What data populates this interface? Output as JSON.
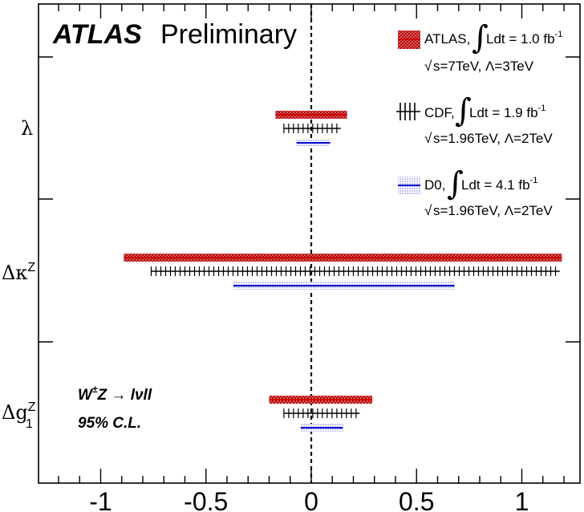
{
  "chart_data": {
    "type": "errorbar-intervals",
    "title_bold": "ATLAS",
    "title_rest": "Preliminary",
    "x_range": [
      -1.3,
      1.3
    ],
    "x_ticks": [
      -1,
      -0.5,
      0,
      0.5,
      1
    ],
    "x_tick_labels": [
      "-1",
      "-0.5",
      "0",
      "0.5",
      "1"
    ],
    "reference_line_x": 0,
    "parameters": [
      {
        "name": "lambda",
        "label": "λ"
      },
      {
        "name": "delta-kappa-z",
        "label": "Δκ",
        "sup": "Z"
      },
      {
        "name": "delta-g1-z",
        "label": "Δg",
        "sup": "Z",
        "sub": "1"
      }
    ],
    "series": [
      {
        "name": "ATLAS",
        "color": "#cc0000",
        "style": "hatched-band",
        "intervals": {
          "lambda": [
            -0.17,
            0.17
          ],
          "delta-kappa-z": [
            -0.89,
            1.19
          ],
          "delta-g1-z": [
            -0.2,
            0.29
          ]
        },
        "legend_label": "ATLAS,",
        "legend_lumi": "Ldt = 1.0 fb",
        "legend_lumi_sup": "-1",
        "legend_energy": "s=7TeV, Λ=3TeV"
      },
      {
        "name": "CDF",
        "color": "#000000",
        "style": "line-with-ticks",
        "intervals": {
          "lambda": [
            -0.13,
            0.14
          ],
          "delta-kappa-z": [
            -0.76,
            1.18
          ],
          "delta-g1-z": [
            -0.13,
            0.23
          ]
        },
        "legend_label": "CDF,",
        "legend_lumi": "Ldt = 1.9 fb",
        "legend_lumi_sup": "-1",
        "legend_energy": "s=1.96TeV, Λ=2TeV"
      },
      {
        "name": "D0",
        "color": "#0000cc",
        "style": "dotted-band",
        "intervals": {
          "lambda": [
            -0.07,
            0.09
          ],
          "delta-kappa-z": [
            -0.37,
            0.68
          ],
          "delta-g1-z": [
            -0.05,
            0.15
          ]
        },
        "legend_label": "D0,",
        "legend_lumi": "Ldt = 4.1 fb",
        "legend_lumi_sup": "-1",
        "legend_energy": "s=1.96TeV, Λ=2TeV"
      }
    ],
    "annotations": {
      "process_w": "W",
      "process_w_sup": "±",
      "process_rest": "Z → lνll",
      "cl": "95% C.L."
    }
  }
}
